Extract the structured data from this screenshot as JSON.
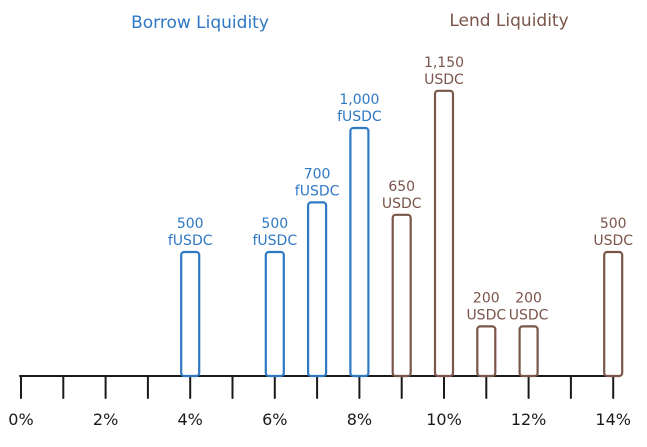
{
  "chart_data": {
    "type": "bar",
    "title": "",
    "xlabel": "",
    "ylabel": "",
    "xlim": [
      0,
      14
    ],
    "ylim": [
      0,
      1400
    ],
    "x_ticks": [
      "0%",
      "2%",
      "4%",
      "6%",
      "8%",
      "10%",
      "12%",
      "14%"
    ],
    "series": [
      {
        "name": "Borrow Liquidity",
        "color": "#2f78c4",
        "points": [
          {
            "x": 4,
            "value": 500,
            "line1": "500",
            "line2": "fUSDC"
          },
          {
            "x": 6,
            "value": 500,
            "line1": "500",
            "line2": "fUSDC"
          },
          {
            "x": 7,
            "value": 700,
            "line1": "700",
            "line2": "fUSDC"
          },
          {
            "x": 8,
            "value": 1000,
            "line1": "1,000",
            "line2": "fUSDC"
          }
        ]
      },
      {
        "name": "Lend Liquidity",
        "color": "#7a5549",
        "points": [
          {
            "x": 9,
            "value": 650,
            "line1": "650",
            "line2": "USDC"
          },
          {
            "x": 10,
            "value": 1150,
            "line1": "1,150",
            "line2": "USDC"
          },
          {
            "x": 11,
            "value": 200,
            "line1": "200",
            "line2": "USDC"
          },
          {
            "x": 12,
            "value": 200,
            "line1": "200",
            "line2": "USDC"
          },
          {
            "x": 14,
            "value": 500,
            "line1": "500",
            "line2": "USDC"
          }
        ]
      }
    ],
    "axis_color": "#1a1a1a"
  }
}
